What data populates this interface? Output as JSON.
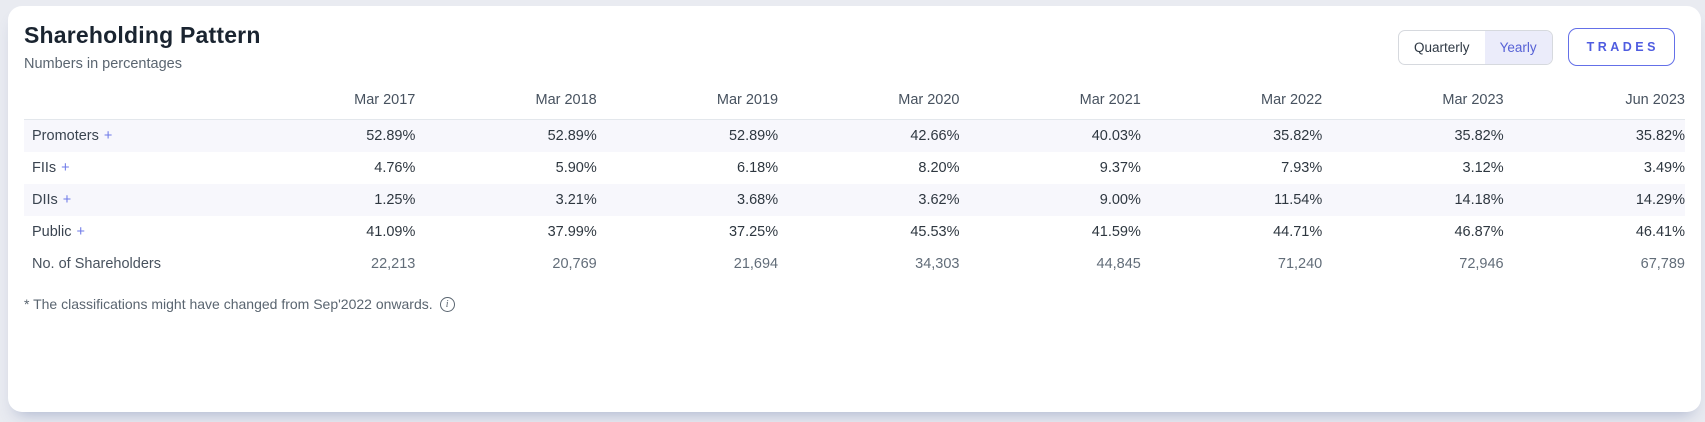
{
  "header": {
    "title": "Shareholding Pattern",
    "subtitle": "Numbers in percentages",
    "toggle": {
      "options": [
        "Quarterly",
        "Yearly"
      ],
      "selected": "Yearly"
    },
    "trades_label": "TRADES"
  },
  "table": {
    "columns": [
      "Mar 2017",
      "Mar 2018",
      "Mar 2019",
      "Mar 2020",
      "Mar 2021",
      "Mar 2022",
      "Mar 2023",
      "Jun 2023"
    ],
    "rows": [
      {
        "label": "Promoters",
        "expandable": true,
        "type": "percent",
        "values": [
          "52.89%",
          "52.89%",
          "52.89%",
          "42.66%",
          "40.03%",
          "35.82%",
          "35.82%",
          "35.82%"
        ]
      },
      {
        "label": "FIIs",
        "expandable": true,
        "type": "percent",
        "values": [
          "4.76%",
          "5.90%",
          "6.18%",
          "8.20%",
          "9.37%",
          "7.93%",
          "3.12%",
          "3.49%"
        ]
      },
      {
        "label": "DIIs",
        "expandable": true,
        "type": "percent",
        "values": [
          "1.25%",
          "3.21%",
          "3.68%",
          "3.62%",
          "9.00%",
          "11.54%",
          "14.18%",
          "14.29%"
        ]
      },
      {
        "label": "Public",
        "expandable": true,
        "type": "percent",
        "values": [
          "41.09%",
          "37.99%",
          "37.25%",
          "45.53%",
          "41.59%",
          "44.71%",
          "46.87%",
          "46.41%"
        ]
      },
      {
        "label": "No. of Shareholders",
        "expandable": false,
        "type": "count",
        "values": [
          "22,213",
          "20,769",
          "21,694",
          "34,303",
          "44,845",
          "71,240",
          "72,946",
          "67,789"
        ]
      }
    ],
    "expand_icon": "+"
  },
  "footnote": {
    "text": "* The classifications might have changed from Sep'2022 onwards.",
    "icon": "info"
  },
  "colors": {
    "accent": "#4f5ce0",
    "accent_light_bg": "#ebecfa",
    "stripe": "#f7f7fc",
    "page_background": "#e9ebf1",
    "text_dark": "#2e3740",
    "text_muted": "#626d79"
  }
}
